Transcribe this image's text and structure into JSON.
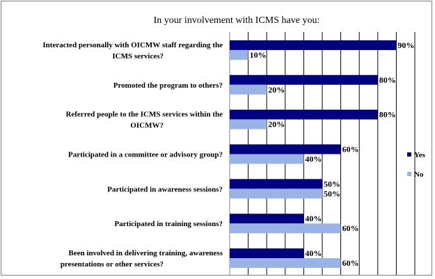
{
  "chart_data": {
    "type": "bar",
    "orientation": "horizontal",
    "title": "In your involvement with ICMS have you:",
    "categories": [
      "Interacted personally with OICMW staff regarding the ICMS services?",
      "Promoted the program to others?",
      "Referred people to the ICMS services within the OICMW?",
      "Participated in a committee or advisory group?",
      "Participated in awareness sessions?",
      "Participated in training sessions?",
      "Been involved in delivering training, awareness presentations or other services?"
    ],
    "category_lines": [
      [
        "Interacted personally with OICMW staff regarding the",
        "ICMS services?"
      ],
      [
        "Promoted the program to others?"
      ],
      [
        "Referred people to the ICMS services within the",
        "OICMW?"
      ],
      [
        "Participated in a committee or advisory group?"
      ],
      [
        "Participated in awareness sessions?"
      ],
      [
        "Participated in training sessions?"
      ],
      [
        "Been involved in delivering training, awareness",
        "presentations or other services?"
      ]
    ],
    "series": [
      {
        "name": "Yes",
        "color": "#000080",
        "values": [
          90,
          80,
          80,
          60,
          50,
          40,
          40
        ]
      },
      {
        "name": "No",
        "color": "#99B3E6",
        "values": [
          10,
          20,
          20,
          40,
          50,
          60,
          60
        ]
      }
    ],
    "xlim": [
      0,
      100
    ],
    "grid": true,
    "legend": "right"
  }
}
